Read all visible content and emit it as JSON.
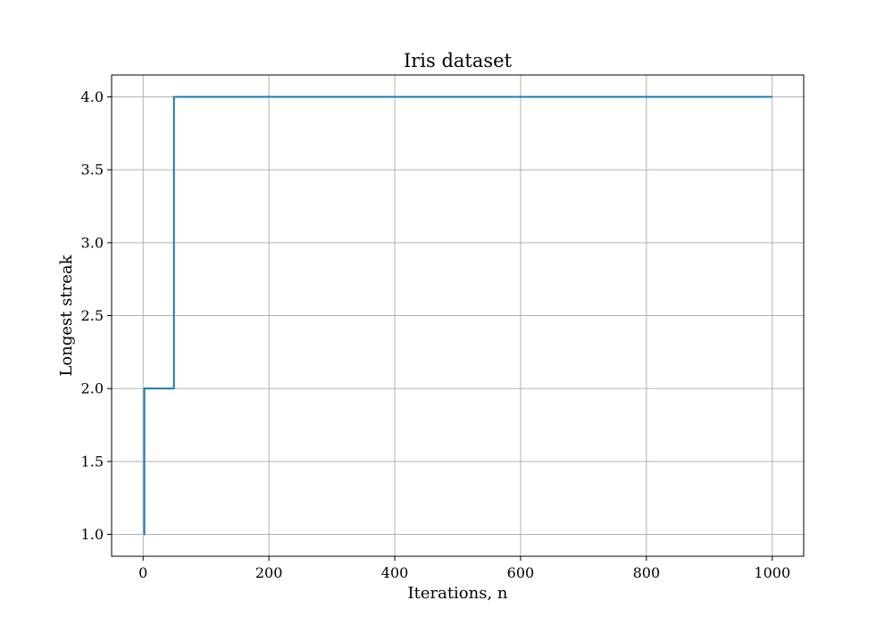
{
  "chart_data": {
    "type": "line",
    "title": "Iris dataset",
    "xlabel": "Iterations, n",
    "ylabel": "Longest streak",
    "xlim": [
      -50,
      1050
    ],
    "ylim": [
      0.85,
      4.15
    ],
    "xticks": [
      0,
      200,
      400,
      600,
      800,
      1000
    ],
    "xtick_labels": [
      "0",
      "200",
      "400",
      "600",
      "800",
      "1000"
    ],
    "yticks": [
      1.0,
      1.5,
      2.0,
      2.5,
      3.0,
      3.5,
      4.0
    ],
    "ytick_labels": [
      "1.0",
      "1.5",
      "2.0",
      "2.5",
      "3.0",
      "3.5",
      "4.0"
    ],
    "grid": true,
    "series": [
      {
        "step": "post",
        "color": "#1f77b4",
        "x": [
          1,
          2,
          49,
          1000
        ],
        "y": [
          1.0,
          2.0,
          4.0,
          4.0
        ]
      }
    ]
  }
}
